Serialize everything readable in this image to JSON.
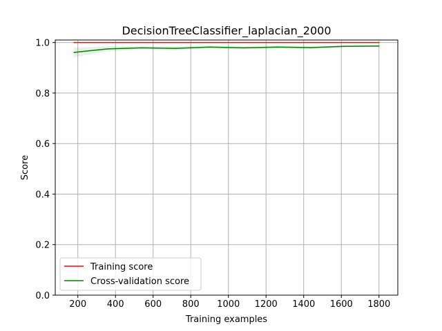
{
  "chart_data": {
    "type": "line",
    "title": "DecisionTreeClassifier_laplacian_2000",
    "xlabel": "Training examples",
    "ylabel": "Score",
    "xlim": [
      80,
      1900
    ],
    "ylim": [
      0.0,
      1.01
    ],
    "xticks": [
      200,
      400,
      600,
      800,
      1000,
      1200,
      1400,
      1600,
      1800
    ],
    "yticks": [
      0.0,
      0.2,
      0.4,
      0.6,
      0.8,
      1.0
    ],
    "xtick_labels": [
      "200",
      "400",
      "600",
      "800",
      "1000",
      "1200",
      "1400",
      "1600",
      "1800"
    ],
    "ytick_labels": [
      "0.0",
      "0.2",
      "0.4",
      "0.6",
      "0.8",
      "1.0"
    ],
    "grid": true,
    "legend_position": "lower-left",
    "x": [
      180,
      360,
      540,
      720,
      900,
      1080,
      1260,
      1440,
      1620,
      1800
    ],
    "series": [
      {
        "name": "Training score",
        "color": "#ff0000",
        "band_color": "#ff0000",
        "values": [
          1.0,
          1.0,
          1.0,
          1.0,
          1.0,
          1.0,
          1.0,
          1.0,
          1.0,
          1.0
        ],
        "lower": [
          1.0,
          1.0,
          1.0,
          1.0,
          1.0,
          1.0,
          1.0,
          1.0,
          1.0,
          1.0
        ],
        "upper": [
          1.0,
          1.0,
          1.0,
          1.0,
          1.0,
          1.0,
          1.0,
          1.0,
          1.0,
          1.0
        ]
      },
      {
        "name": "Cross-validation score",
        "color": "#008000",
        "band_color": "#008000",
        "values": [
          0.961,
          0.975,
          0.979,
          0.977,
          0.982,
          0.979,
          0.982,
          0.98,
          0.985,
          0.986
        ],
        "lower": [
          0.942,
          0.965,
          0.972,
          0.969,
          0.976,
          0.972,
          0.976,
          0.974,
          0.981,
          0.983
        ],
        "upper": [
          0.98,
          0.985,
          0.986,
          0.985,
          0.988,
          0.986,
          0.988,
          0.986,
          0.989,
          0.989
        ]
      }
    ]
  }
}
